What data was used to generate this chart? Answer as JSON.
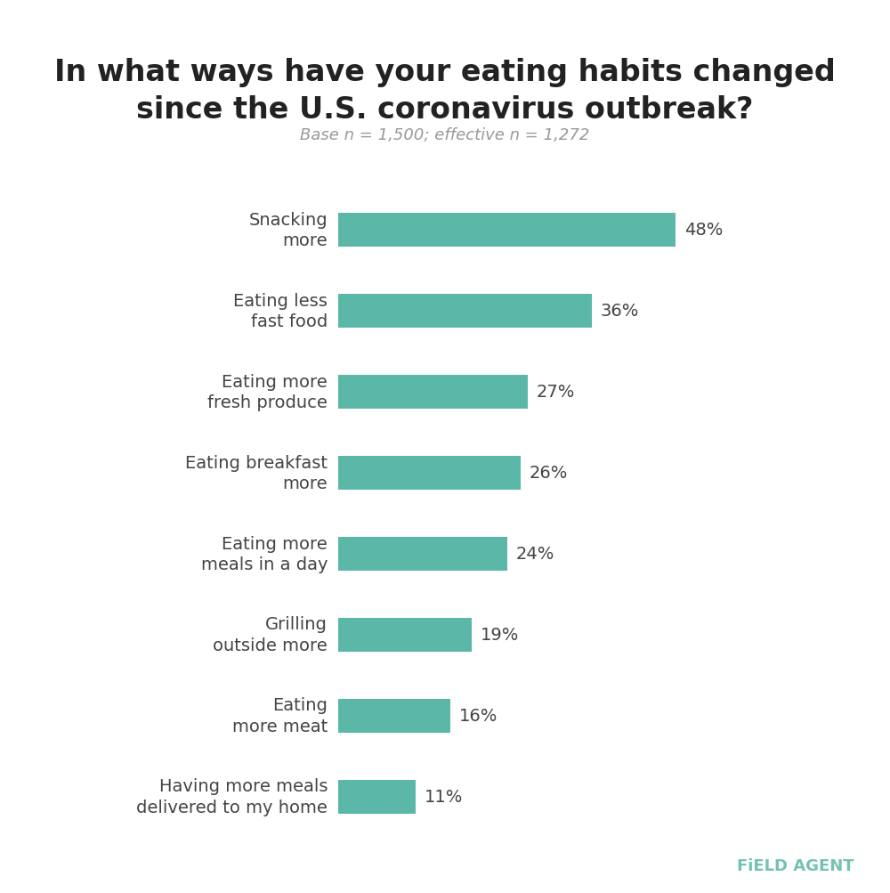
{
  "title": "In what ways have your eating habits changed\nsince the U.S. coronavirus outbreak?",
  "subtitle": "Base n = 1,500; effective n = 1,272",
  "categories": [
    "Snacking\nmore",
    "Eating less\nfast food",
    "Eating more\nfresh produce",
    "Eating breakfast\nmore",
    "Eating more\nmeals in a day",
    "Grilling\noutside more",
    "Eating\nmore meat",
    "Having more meals\ndelivered to my home"
  ],
  "values": [
    48,
    36,
    27,
    26,
    24,
    19,
    16,
    11
  ],
  "bar_color": "#5bb8a8",
  "label_color": "#444444",
  "title_color": "#222222",
  "subtitle_color": "#999999",
  "value_color": "#444444",
  "background_color": "#ffffff",
  "brand_text": "FiELD AGENT",
  "brand_color": "#5bb8a8",
  "title_fontsize": 24,
  "subtitle_fontsize": 13,
  "label_fontsize": 14,
  "value_fontsize": 14,
  "bar_height": 0.42,
  "xlim": [
    0,
    62
  ]
}
